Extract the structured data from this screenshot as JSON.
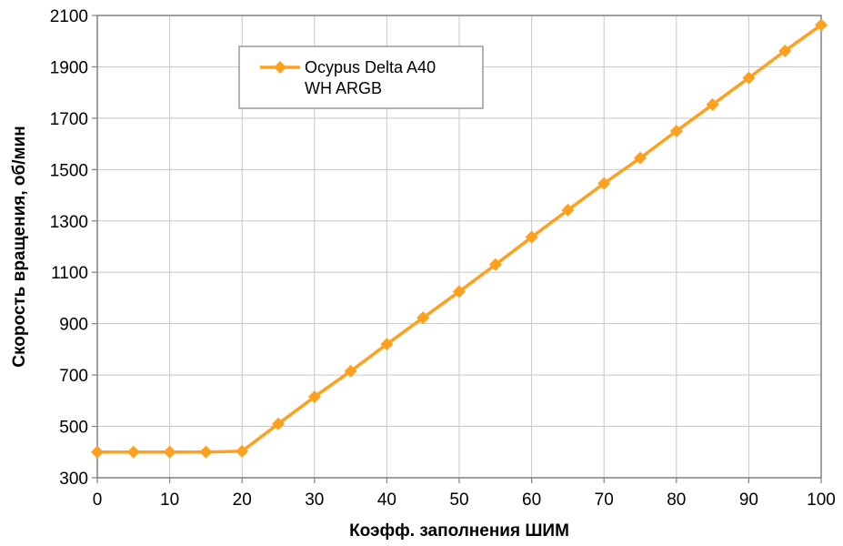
{
  "chart_data": {
    "type": "line",
    "xlabel": "Коэфф. заполнения ШИМ",
    "ylabel": "Скорость вращения, об/мин",
    "xlim": [
      0,
      100
    ],
    "ylim": [
      300,
      2100
    ],
    "x_ticks": [
      "0",
      "10",
      "20",
      "30",
      "40",
      "50",
      "60",
      "70",
      "80",
      "90",
      "100"
    ],
    "y_ticks": [
      "300",
      "500",
      "700",
      "900",
      "1100",
      "1300",
      "1500",
      "1700",
      "1900",
      "2100"
    ],
    "grid": true,
    "legend": {
      "placement": "top-left",
      "line1": "Ocypus Delta A40",
      "line2": "WH ARGB"
    },
    "series": [
      {
        "name": "Ocypus Delta A40 WH ARGB",
        "color": "#FFA01E",
        "marker": "diamond",
        "x": [
          0,
          5,
          10,
          15,
          20,
          25,
          30,
          35,
          40,
          45,
          50,
          55,
          60,
          65,
          70,
          75,
          80,
          85,
          90,
          95,
          100
        ],
        "y": [
          400,
          400,
          400,
          400,
          403,
          510,
          615,
          715,
          820,
          923,
          1025,
          1130,
          1237,
          1342,
          1446,
          1545,
          1650,
          1753,
          1857,
          1962,
          2063
        ]
      }
    ]
  }
}
